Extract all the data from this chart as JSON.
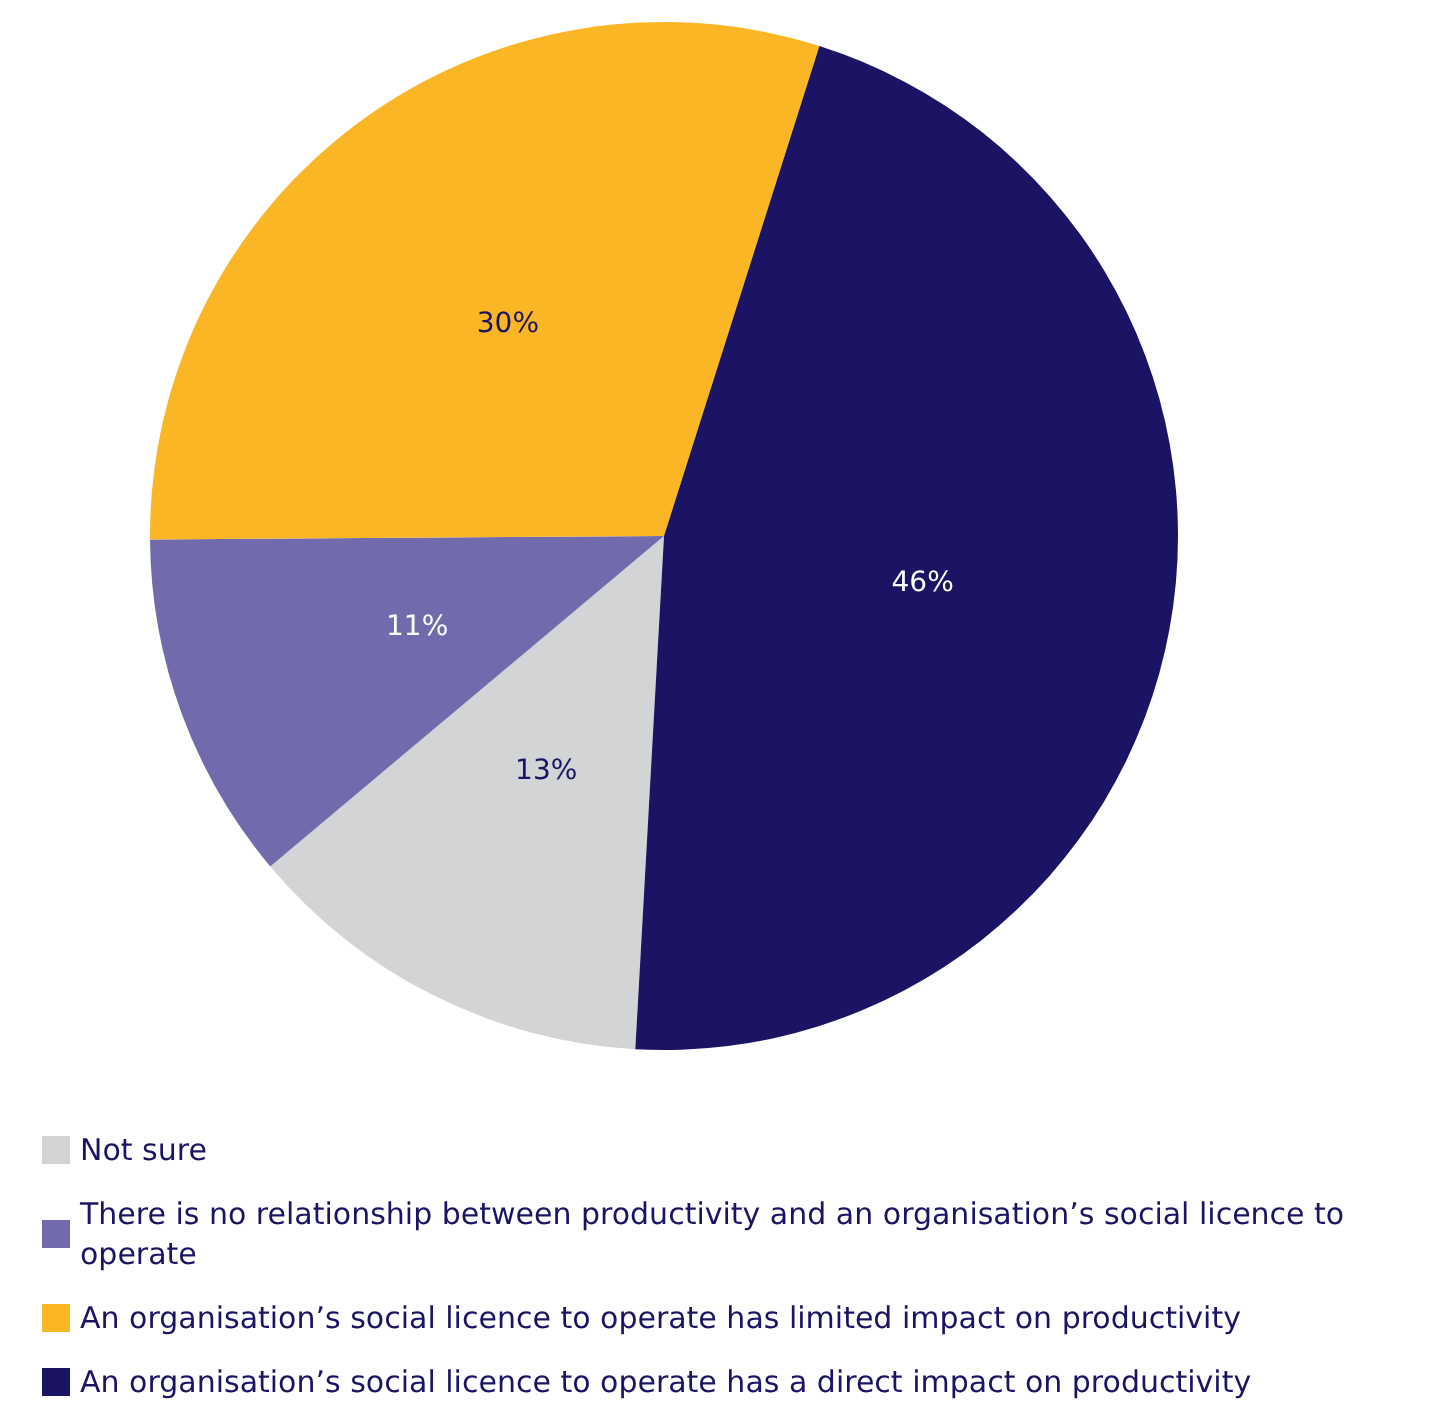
{
  "chart_data": {
    "type": "pie",
    "categories": [
      "Not sure",
      "There is no relationship between productivity and an organisation’s social licence to operate",
      "An organisation’s social licence to operate has limited impact on productivity",
      "An organisation’s social licence to operate has a direct impact on productivity"
    ],
    "values": [
      13,
      11,
      30,
      46
    ],
    "colors": [
      "#d3d4d6",
      "#716bae",
      "#fbb626",
      "#1b1464"
    ],
    "value_labels": [
      "13%",
      "11%",
      "30%",
      "46%"
    ],
    "legend": "bottom left"
  }
}
